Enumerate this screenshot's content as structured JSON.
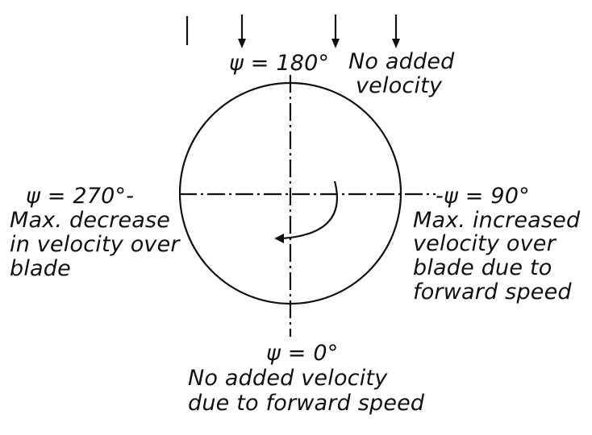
{
  "labels": {
    "top_psi": "ψ = 180°",
    "top_note_1": "No added",
    "top_note_2": "velocity",
    "left_psi": "ψ = 270°-",
    "left_note_1": "Max. decrease",
    "left_note_2": "in velocity over",
    "left_note_3": "blade",
    "right_psi": "-ψ = 90°",
    "right_note_1": "Max. increased",
    "right_note_2": "velocity over",
    "right_note_3": "blade due to",
    "right_note_4": "forward speed",
    "bottom_psi": "ψ = 0°",
    "bottom_note_1": "No added velocity",
    "bottom_note_2": "due to forward speed"
  },
  "colors": {
    "ink": "#111111",
    "background": "#ffffff"
  }
}
